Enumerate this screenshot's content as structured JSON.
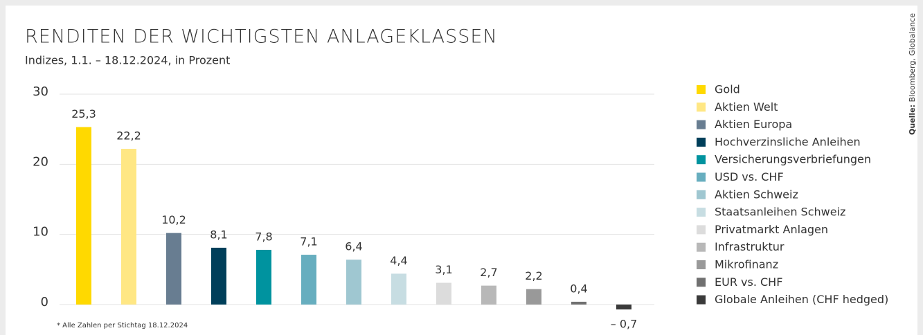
{
  "chart_data": {
    "type": "bar",
    "title": "RENDITEN DER WICHTIGSTEN ANLAGEKLASSEN",
    "subtitle": "Indizes, 1.1. – 18.12.2024, in Prozent",
    "categories": [
      "Gold",
      "Aktien Welt",
      "Aktien Europa",
      "Hochverzinsliche Anleihen",
      "Versicherungsverbriefungen",
      "USD vs. CHF",
      "Aktien Schweiz",
      "Staatsanleihen Schweiz",
      "Privatmarkt Anlagen",
      "Infrastruktur",
      "Mikrofinanz",
      "EUR vs. CHF",
      "Globale Anleihen (CHF hedged)"
    ],
    "values": [
      25.3,
      22.2,
      10.2,
      8.1,
      7.8,
      7.1,
      6.4,
      4.4,
      3.1,
      2.7,
      2.2,
      0.4,
      -0.7
    ],
    "value_labels": [
      "25,3",
      "22,2",
      "10,2",
      "8,1",
      "7,8",
      "7,1",
      "6,4",
      "4,4",
      "3,1",
      "2,7",
      "2,2",
      "0,4",
      "– 0,7"
    ],
    "colors": [
      "#ffd900",
      "#ffe784",
      "#687d91",
      "#003f5a",
      "#00939f",
      "#67aebf",
      "#9fc7d1",
      "#c7dde2",
      "#dcdcdc",
      "#b8b8b8",
      "#999999",
      "#707070",
      "#3a3a3a"
    ],
    "ylim": [
      0,
      30
    ],
    "yticks": [
      0,
      10,
      20,
      30
    ],
    "grid": true,
    "legend": "right",
    "footnote": "* Alle Zahlen per Stichtag 18.12.2024",
    "source_label": "Quelle:",
    "source": "Bloomberg, Globalance"
  }
}
